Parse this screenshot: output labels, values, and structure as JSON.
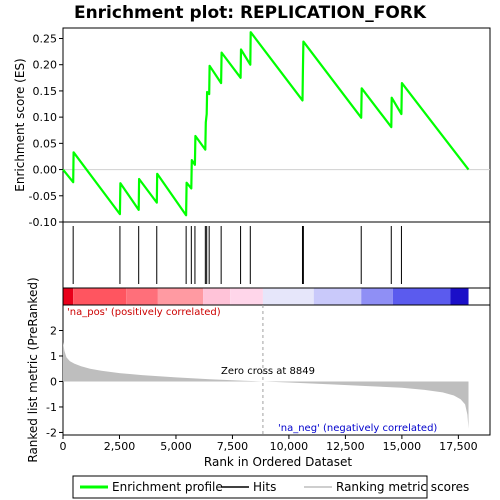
{
  "chart_data": {
    "type": "line",
    "title": "Enrichment plot: REPLICATION_FORK",
    "x_label": "Rank in Ordered Dataset",
    "es_panel": {
      "y_label": "Enrichment score (ES)",
      "y_range": [
        -0.1,
        0.27
      ],
      "y_ticks": [
        -0.1,
        -0.05,
        0.0,
        0.05,
        0.1,
        0.15,
        0.2,
        0.25
      ],
      "y_tick_labels": [
        "-0.10",
        "-0.05",
        "0.00",
        "0.05",
        "0.10",
        "0.15",
        "0.20",
        "0.25"
      ],
      "series": [
        {
          "name": "Enrichment profile",
          "color": "#00ff00",
          "x": [
            0,
            450,
            470,
            2520,
            2540,
            3350,
            3370,
            4150,
            4170,
            5450,
            5470,
            5680,
            5700,
            5840,
            5860,
            6300,
            6320,
            6360,
            6380,
            6470,
            6490,
            7000,
            7020,
            7860,
            7880,
            8290,
            8310,
            10600,
            10620,
            10640,
            13200,
            13220,
            14530,
            14550,
            14980,
            15000,
            17950
          ],
          "y": [
            0.0,
            -0.024,
            0.033,
            -0.085,
            -0.026,
            -0.077,
            -0.018,
            -0.063,
            -0.008,
            -0.087,
            -0.025,
            -0.036,
            0.018,
            0.009,
            0.064,
            0.038,
            0.09,
            0.106,
            0.148,
            0.144,
            0.198,
            0.165,
            0.223,
            0.175,
            0.229,
            0.2,
            0.262,
            0.132,
            0.188,
            0.244,
            0.099,
            0.155,
            0.081,
            0.137,
            0.106,
            0.165,
            0.0
          ]
        }
      ]
    },
    "hits": [
      450,
      2520,
      3350,
      4150,
      5450,
      5680,
      5840,
      6300,
      6360,
      6470,
      7000,
      7860,
      8290,
      10600,
      10640,
      13200,
      14530,
      14980
    ],
    "heatmap_bar": {
      "segments": [
        {
          "x0": 0,
          "x1": 450,
          "color": "#e8001a"
        },
        {
          "x0": 450,
          "x1": 2800,
          "color": "#ff5560"
        },
        {
          "x0": 2800,
          "x1": 4200,
          "color": "#ff6f7a"
        },
        {
          "x0": 4200,
          "x1": 6200,
          "color": "#ff9aa2"
        },
        {
          "x0": 6200,
          "x1": 7400,
          "color": "#ffc3d8"
        },
        {
          "x0": 7400,
          "x1": 8849,
          "color": "#ffd6ea"
        },
        {
          "x0": 8849,
          "x1": 11100,
          "color": "#e6e6fa"
        },
        {
          "x0": 11100,
          "x1": 13200,
          "color": "#c9c9fa"
        },
        {
          "x0": 13200,
          "x1": 14600,
          "color": "#8f8ff5"
        },
        {
          "x0": 14600,
          "x1": 17150,
          "color": "#5b5bee"
        },
        {
          "x0": 17150,
          "x1": 17950,
          "color": "#1b0fc8"
        }
      ]
    },
    "metric_panel": {
      "y_label": "Ranked list metric (PreRanked)",
      "y_range": [
        -2.1,
        3.0
      ],
      "y_ticks": [
        -2,
        -1,
        0,
        1,
        2
      ],
      "y_tick_labels": [
        "-2",
        "-1",
        "0",
        "1",
        "2"
      ],
      "color": "#bebebe",
      "x": [
        0,
        60,
        150,
        300,
        500,
        800,
        1200,
        1700,
        2500,
        3500,
        5000,
        6500,
        8000,
        8849,
        10000,
        12000,
        13500,
        15000,
        16000,
        16800,
        17300,
        17600,
        17800,
        17900,
        17950
      ],
      "y": [
        1.55,
        1.2,
        0.95,
        0.8,
        0.7,
        0.6,
        0.5,
        0.42,
        0.33,
        0.25,
        0.16,
        0.09,
        0.03,
        0.0,
        -0.04,
        -0.12,
        -0.18,
        -0.25,
        -0.33,
        -0.43,
        -0.55,
        -0.7,
        -0.9,
        -1.3,
        -1.85
      ]
    },
    "x_range": [
      0,
      18900
    ],
    "x_ticks": [
      0,
      2500,
      5000,
      7500,
      10000,
      12500,
      15000,
      17500
    ],
    "x_tick_labels": [
      "0",
      "2,500",
      "5,000",
      "7,500",
      "10,000",
      "12,500",
      "15,000",
      "17,500"
    ],
    "zero_cross": 8849,
    "annotations": {
      "pos_label": "'na_pos' (positively correlated)",
      "pos_color": "#cc0000",
      "neg_label": "'na_neg' (negatively correlated)",
      "neg_color": "#0000cc",
      "zero_cross_label": "Zero cross at 8849"
    },
    "legend": {
      "placement": "bottom",
      "items": [
        {
          "label": "Enrichment profile",
          "color": "#00ff00",
          "kind": "line"
        },
        {
          "label": "Hits",
          "color": "#000000",
          "kind": "line"
        },
        {
          "label": "Ranking metric scores",
          "color": "#bebebe",
          "kind": "line"
        }
      ]
    }
  }
}
